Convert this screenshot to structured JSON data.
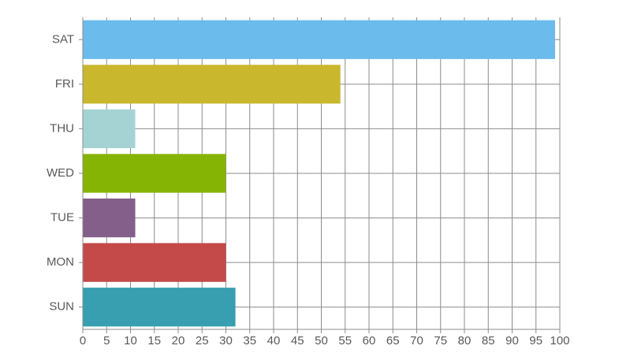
{
  "chart_data": {
    "type": "barh",
    "categories": [
      "SUN",
      "MON",
      "TUE",
      "WED",
      "THU",
      "FRI",
      "SAT"
    ],
    "values": [
      32,
      30,
      11,
      30,
      11,
      54,
      99
    ],
    "colors": [
      "#379faf",
      "#c44a4a",
      "#835f8a",
      "#86b404",
      "#a5d3d3",
      "#c9b82e",
      "#6bbbec"
    ],
    "xlim": [
      0,
      100
    ],
    "xticks": [
      0,
      5,
      10,
      15,
      20,
      25,
      30,
      35,
      40,
      45,
      50,
      55,
      60,
      65,
      70,
      75,
      80,
      85,
      90,
      95,
      100
    ],
    "grid": true
  }
}
